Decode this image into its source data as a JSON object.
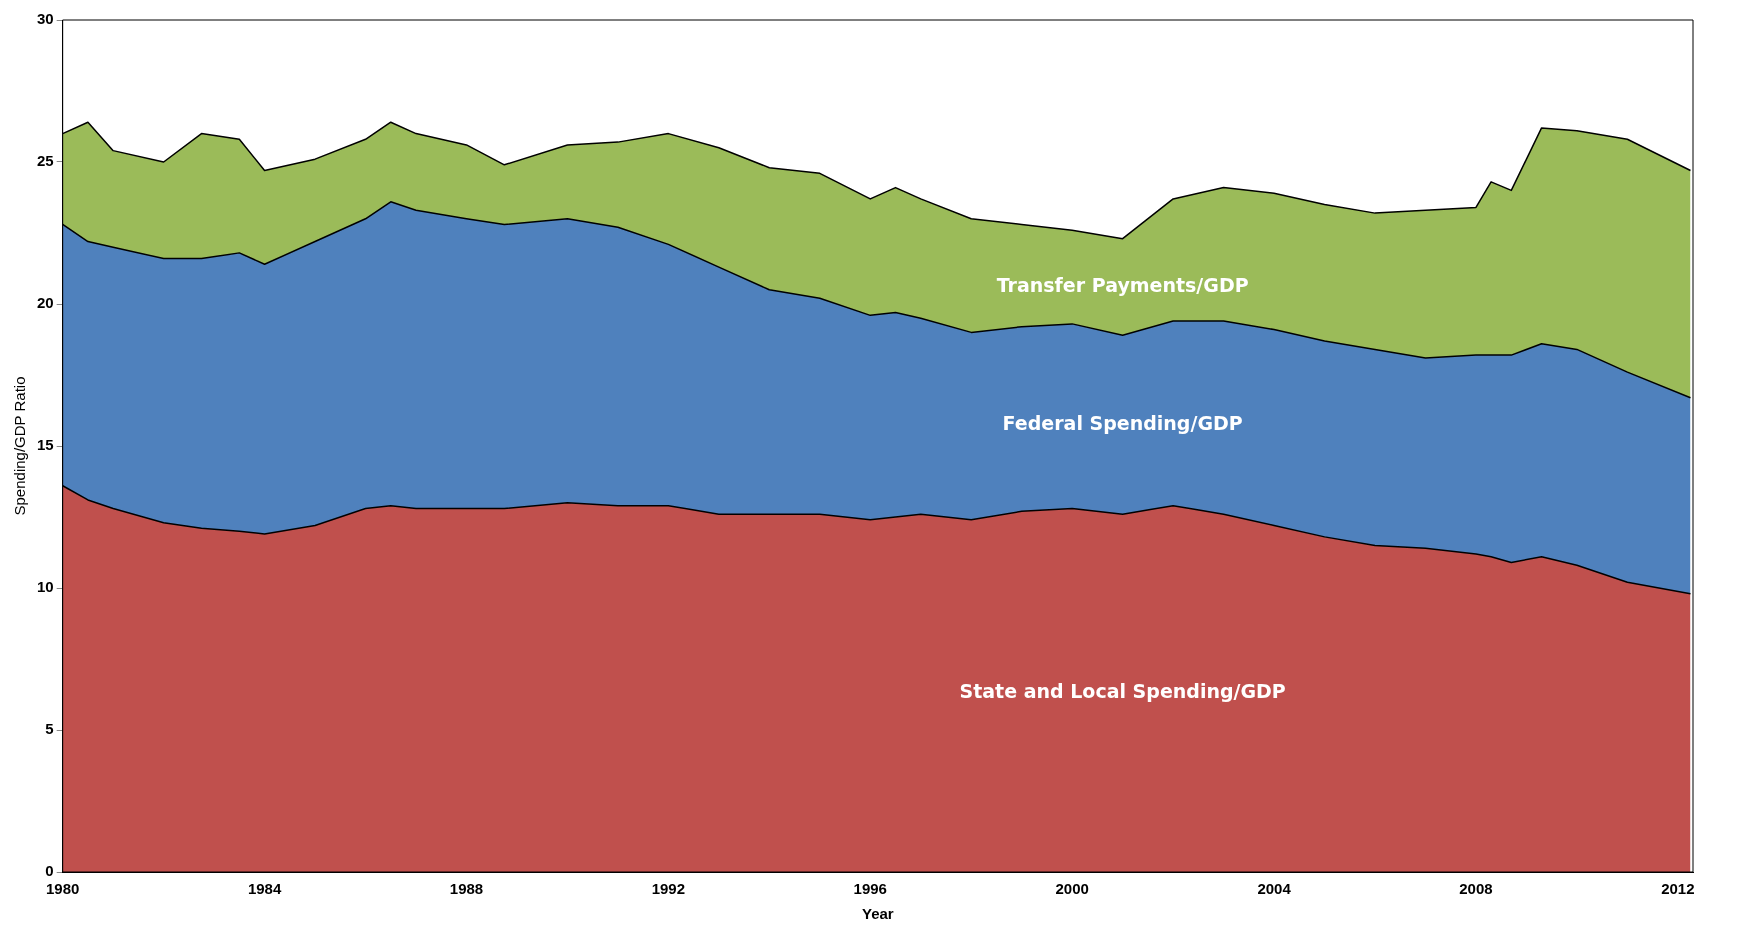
{
  "chart_data": {
    "type": "area",
    "stacked": true,
    "xlabel": "Year",
    "ylabel": "Spending/GDP Ratio",
    "x": [
      1980,
      1980.5,
      1981,
      1982,
      1982.75,
      1983.5,
      1984,
      1985,
      1986,
      1986.5,
      1987,
      1988,
      1988.75,
      1990,
      1991,
      1992,
      1993,
      1994,
      1995,
      1996,
      1996.5,
      1997,
      1998,
      1999,
      2000,
      2001,
      2002,
      2003,
      2004,
      2005,
      2006,
      2007,
      2008,
      2008.3,
      2008.7,
      2009.3,
      2010,
      2011,
      2012.25
    ],
    "series": [
      {
        "name": "State and Local Spending/GDP",
        "color": "#c0504d",
        "values": [
          13.6,
          13.1,
          12.8,
          12.3,
          12.1,
          12.0,
          11.9,
          12.2,
          12.8,
          12.9,
          12.8,
          12.8,
          12.8,
          13.0,
          12.9,
          12.9,
          12.6,
          12.6,
          12.6,
          12.4,
          12.5,
          12.6,
          12.4,
          12.7,
          12.8,
          12.6,
          12.9,
          12.6,
          12.2,
          11.8,
          11.5,
          11.4,
          11.2,
          11.1,
          10.9,
          11.1,
          10.8,
          10.2,
          9.8
        ]
      },
      {
        "name": "Federal Spending/GDP",
        "color": "#4f81bd",
        "values": [
          9.2,
          9.1,
          9.2,
          9.3,
          9.5,
          9.8,
          9.5,
          10.0,
          10.2,
          10.7,
          10.5,
          10.2,
          10.0,
          10.0,
          9.8,
          9.2,
          8.7,
          7.9,
          7.6,
          7.2,
          7.2,
          6.9,
          6.6,
          6.5,
          6.5,
          6.3,
          6.5,
          6.8,
          6.9,
          6.9,
          6.9,
          6.7,
          7.0,
          7.1,
          7.3,
          7.5,
          7.6,
          7.4,
          6.9
        ]
      },
      {
        "name": "Transfer Payments/GDP",
        "color": "#9bbb59",
        "values": [
          3.2,
          4.2,
          3.4,
          3.4,
          4.4,
          4.0,
          3.3,
          2.9,
          2.8,
          2.8,
          2.7,
          2.6,
          2.1,
          2.6,
          3.0,
          3.9,
          4.2,
          4.3,
          4.4,
          4.1,
          4.4,
          4.2,
          4.0,
          3.6,
          3.3,
          3.4,
          4.3,
          4.7,
          4.8,
          4.8,
          4.8,
          5.2,
          5.2,
          6.1,
          5.8,
          7.6,
          7.7,
          8.2,
          8.0
        ]
      }
    ],
    "xlim": [
      1980,
      2012.3
    ],
    "xticks": [
      1980,
      1984,
      1988,
      1992,
      1996,
      2000,
      2004,
      2008,
      2012
    ],
    "ylim": [
      0,
      30
    ],
    "yticks": [
      0,
      5,
      10,
      15,
      20,
      25,
      30
    ],
    "grid": false,
    "legend": false
  }
}
